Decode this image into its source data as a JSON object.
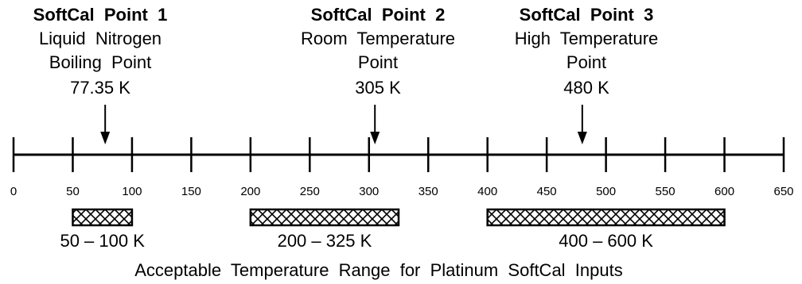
{
  "soft_points": [
    {
      "title": "SoftCal  Point  1",
      "lines": [
        "Liquid  Nitrogen",
        "Boiling  Point"
      ],
      "value_label": "77.35 K",
      "value": 77.35
    },
    {
      "title": "SoftCal  Point  2",
      "lines": [
        "Room  Temperature",
        "Point"
      ],
      "value_label": "305 K",
      "value": 305
    },
    {
      "title": "SoftCal  Point  3",
      "lines": [
        "High  Temperature",
        "Point"
      ],
      "value_label": "480 K",
      "value": 480
    }
  ],
  "axis": {
    "min": 0,
    "max": 650,
    "ticks": [
      0,
      50,
      100,
      150,
      200,
      250,
      300,
      350,
      400,
      450,
      500,
      550,
      600,
      650
    ]
  },
  "ranges": [
    {
      "label": "50 – 100 K",
      "start": 50,
      "end": 100
    },
    {
      "label": "200 – 325 K",
      "start": 200,
      "end": 325
    },
    {
      "label": "400 – 600 K",
      "start": 400,
      "end": 600
    }
  ],
  "caption": "Acceptable  Temperature  Range  for  Platinum  SoftCal  Inputs"
}
